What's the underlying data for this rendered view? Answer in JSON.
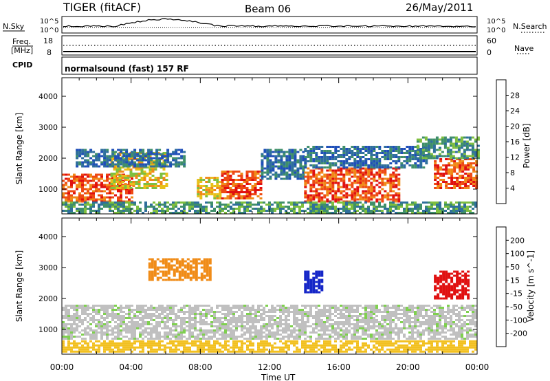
{
  "header": {
    "title": "TIGER (fitACF)",
    "beam": "Beam 06",
    "date": "26/May/2011"
  },
  "strip_panels": {
    "nsky_label": "N.Sky",
    "nsearch_label": "N.Search",
    "nsky_ticks_left": [
      "10^5",
      "10^0"
    ],
    "nsky_ticks_right": [
      "10^5",
      "10^0"
    ],
    "freq_label_line1": "Freq.",
    "freq_label_line2": "[MHz]",
    "freq_ticks": [
      "18",
      "8"
    ],
    "nave_label": "Nave",
    "nave_ticks": [
      "60",
      "0"
    ],
    "cpid_label": "CPID",
    "cpid_text": "normalsound (fast) 157 RF"
  },
  "chart_data": [
    {
      "type": "heatmap",
      "name": "power-panel",
      "ylabel": "Slant Range [km]",
      "xlabel": "Time UT",
      "yticks": [
        "1000",
        "2000",
        "3000",
        "4000"
      ],
      "ylim": [
        200,
        4600
      ],
      "xlim": [
        0,
        24
      ],
      "xticks": [
        "00:00",
        "04:00",
        "08:00",
        "12:00",
        "16:00",
        "20:00",
        "00:00"
      ],
      "colorbar": {
        "label": "Power [dB]",
        "ticks": [
          "4",
          "8",
          "12",
          "16",
          "20",
          "24",
          "28"
        ],
        "colors": [
          "#0b1cd6",
          "#1f4fb8",
          "#2f6f9c",
          "#3f8f6a",
          "#7fbf3f",
          "#e8c01a",
          "#f08a18",
          "#ee4a14",
          "#e01010"
        ]
      },
      "regions": [
        {
          "t0": 0.0,
          "t1": 4.0,
          "r0": 600,
          "r1": 1500,
          "level": 28
        },
        {
          "t0": 2.8,
          "t1": 6.0,
          "r0": 1000,
          "r1": 2200,
          "level": 20
        },
        {
          "t0": 0.8,
          "t1": 7.0,
          "r0": 1700,
          "r1": 2300,
          "level": 8
        },
        {
          "t0": 7.8,
          "t1": 9.2,
          "r0": 700,
          "r1": 1400,
          "level": 20
        },
        {
          "t0": 9.2,
          "t1": 11.5,
          "r0": 700,
          "r1": 1600,
          "level": 28
        },
        {
          "t0": 11.5,
          "t1": 14.0,
          "r0": 1300,
          "r1": 2300,
          "level": 8
        },
        {
          "t0": 14.0,
          "t1": 19.5,
          "r0": 600,
          "r1": 1700,
          "level": 28
        },
        {
          "t0": 14.0,
          "t1": 21.0,
          "r0": 1700,
          "r1": 2400,
          "level": 8
        },
        {
          "t0": 21.5,
          "t1": 24.0,
          "r0": 1000,
          "r1": 2000,
          "level": 28
        },
        {
          "t0": 20.5,
          "t1": 24.0,
          "r0": 2000,
          "r1": 2700,
          "level": 12
        },
        {
          "t0": 0.0,
          "t1": 24.0,
          "r0": 200,
          "r1": 600,
          "level": 12
        }
      ]
    },
    {
      "type": "heatmap",
      "name": "velocity-panel",
      "ylabel": "Slant Range [km]",
      "xlabel": "Time UT",
      "yticks": [
        "1000",
        "2000",
        "3000",
        "4000"
      ],
      "ylim": [
        200,
        4600
      ],
      "xlim": [
        0,
        24
      ],
      "xticks": [
        "00:00",
        "04:00",
        "08:00",
        "12:00",
        "16:00",
        "20:00",
        "00:00"
      ],
      "colorbar": {
        "label": "Velocity [m s^-1]",
        "ticks": [
          "200",
          "100",
          "50",
          "15",
          "-15",
          "-50",
          "-100",
          "-200"
        ],
        "colors": [
          "#1526c8",
          "#2f58c0",
          "#38a838",
          "#7fd04f",
          "#c0c0c0",
          "#c0c0c0",
          "#f2c020",
          "#f08c18",
          "#ee4a14",
          "#e01010"
        ]
      },
      "regions": [
        {
          "t0": 0.0,
          "t1": 24.0,
          "r0": 700,
          "r1": 1800,
          "level": 0
        },
        {
          "t0": 0.0,
          "t1": 24.0,
          "r0": 300,
          "r1": 650,
          "level": -50
        },
        {
          "t0": 5.0,
          "t1": 8.5,
          "r0": 2600,
          "r1": 3300,
          "level": -100
        },
        {
          "t0": 21.5,
          "t1": 23.5,
          "r0": 2000,
          "r1": 2900,
          "level": -200
        },
        {
          "t0": 14.0,
          "t1": 15.0,
          "r0": 2200,
          "r1": 2900,
          "level": 200
        }
      ]
    }
  ],
  "x_axis": {
    "label": "Time UT",
    "ticks": [
      "00:00",
      "04:00",
      "08:00",
      "12:00",
      "16:00",
      "20:00",
      "00:00"
    ]
  }
}
